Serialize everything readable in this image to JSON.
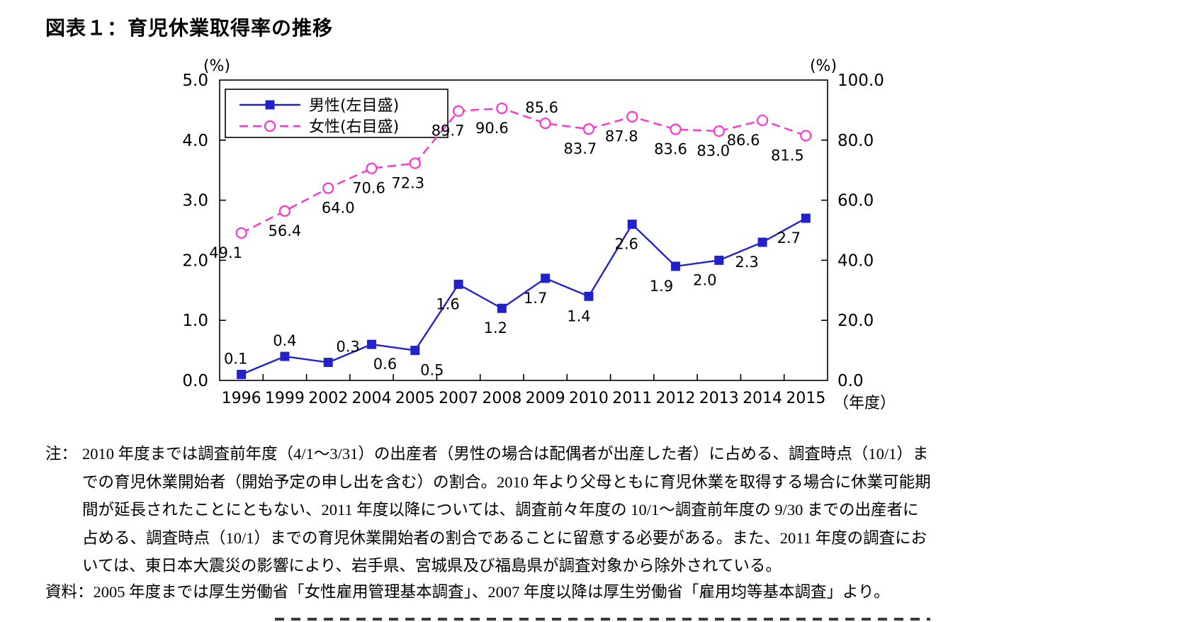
{
  "title": "図表１：育児休業取得率の推移",
  "chart_data": {
    "type": "line",
    "categories": [
      "1996",
      "1999",
      "2002",
      "2004",
      "2005",
      "2007",
      "2008",
      "2009",
      "2010",
      "2011",
      "2012",
      "2013",
      "2014",
      "2015"
    ],
    "x_axis_unit": "（年度）",
    "left_axis": {
      "unit": "(%)",
      "min": 0,
      "max": 5,
      "tick_labels": [
        "0.0",
        "1.0",
        "2.0",
        "3.0",
        "4.0",
        "5.0"
      ]
    },
    "right_axis": {
      "unit": "(%)",
      "min": 0,
      "max": 100,
      "tick_labels": [
        "0.0",
        "20.0",
        "40.0",
        "60.0",
        "80.0",
        "100.0"
      ]
    },
    "grid": false,
    "legend_position": "top-left-inside",
    "series": [
      {
        "name": "男性(左目盛)",
        "axis": "left",
        "color": "#2222CC",
        "marker": "square",
        "line_style": "solid",
        "values": [
          0.1,
          0.4,
          0.3,
          0.6,
          0.5,
          1.6,
          1.2,
          1.7,
          1.4,
          2.6,
          1.9,
          2.0,
          2.3,
          2.7
        ],
        "point_labels": [
          {
            "text": "0.1",
            "side": "above",
            "dx": -8
          },
          {
            "text": "0.4",
            "side": "above",
            "dx": 0
          },
          {
            "text": "0.3",
            "side": "above",
            "dx": 28
          },
          {
            "text": "0.6",
            "side": "below",
            "dx": 19
          },
          {
            "text": "0.5",
            "side": "below",
            "dx": 24
          },
          {
            "text": "1.6",
            "side": "below",
            "dx": -15
          },
          {
            "text": "1.2",
            "side": "below",
            "dx": -9
          },
          {
            "text": "1.7",
            "side": "below",
            "dx": -14
          },
          {
            "text": "1.4",
            "side": "below",
            "dx": -14
          },
          {
            "text": "2.6",
            "side": "below",
            "dx": -8
          },
          {
            "text": "1.9",
            "side": "below",
            "dx": -20
          },
          {
            "text": "2.0",
            "side": "below",
            "dx": -20
          },
          {
            "text": "2.3",
            "side": "below",
            "dx": -22
          },
          {
            "text": "2.7",
            "side": "below",
            "dx": -24
          }
        ]
      },
      {
        "name": "女性(右目盛)",
        "axis": "right",
        "color": "#FF33CC",
        "marker": "circle-open",
        "line_style": "dashed",
        "values": [
          49.1,
          56.4,
          64.0,
          70.6,
          72.3,
          89.7,
          90.6,
          85.6,
          83.7,
          87.8,
          83.6,
          83.0,
          86.6,
          81.5
        ],
        "point_labels": [
          {
            "text": "49.1",
            "side": "below",
            "dx": -22
          },
          {
            "text": "56.4",
            "side": "below",
            "dx": 0
          },
          {
            "text": "64.0",
            "side": "below",
            "dx": 14
          },
          {
            "text": "70.6",
            "side": "below",
            "dx": -4
          },
          {
            "text": "72.3",
            "side": "below",
            "dx": -10
          },
          {
            "text": "89.7",
            "side": "below",
            "dx": -15
          },
          {
            "text": "90.6",
            "side": "below",
            "dx": -14
          },
          {
            "text": "85.6",
            "side": "above",
            "dx": -5
          },
          {
            "text": "83.7",
            "side": "below",
            "dx": -12
          },
          {
            "text": "87.8",
            "side": "below",
            "dx": -15
          },
          {
            "text": "83.6",
            "side": "below",
            "dx": -7
          },
          {
            "text": "83.0",
            "side": "below",
            "dx": -8
          },
          {
            "text": "86.6",
            "side": "below",
            "dx": -27
          },
          {
            "text": "81.5",
            "side": "below",
            "dx": -26
          }
        ]
      }
    ]
  },
  "note": {
    "prefix": "注：",
    "lines": [
      "2010 年度までは調査前年度（4/1～3/31）の出産者（男性の場合は配偶者が出産した者）に占める、調査時点（10/1）ま",
      "での育児休業開始者（開始予定の申し出を含む）の割合。2010 年より父母ともに育児休業を取得する場合に休業可能期",
      "間が延長されたことにともない、2011 年度以降については、調査前々年度の 10/1～調査前年度の 9/30 までの出産者に",
      "占める、調査時点（10/1）までの育児休業開始者の割合であることに留意する必要がある。また、2011 年度の調査にお",
      "いては、東日本大震災の影響により、岩手県、宮城県及び福島県が調査対象から除外されている。"
    ]
  },
  "source": "資料：2005 年度までは厚生労働省「女性雇用管理基本調査」、2007 年度以降は厚生労働省「雇用均等基本調査」より。"
}
